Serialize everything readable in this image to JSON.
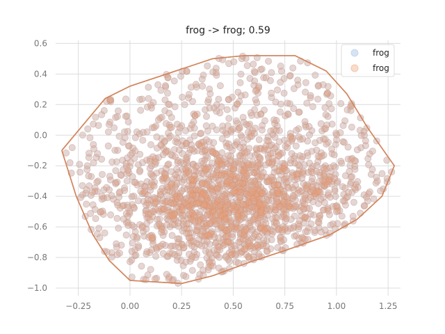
{
  "chart_data": {
    "type": "scatter",
    "title": "frog -> frog; 0.59",
    "xlabel": "",
    "ylabel": "",
    "xlim": [
      -0.36,
      1.31
    ],
    "ylim": [
      -1.05,
      0.62
    ],
    "xticks": [
      -0.25,
      0.0,
      0.25,
      0.5,
      0.75,
      1.0,
      1.25
    ],
    "xtick_labels": [
      "−0.25",
      "0.00",
      "0.25",
      "0.50",
      "0.75",
      "1.00",
      "1.25"
    ],
    "yticks": [
      0.6,
      0.4,
      0.2,
      0.0,
      -0.2,
      -0.4,
      -0.6,
      -0.8,
      -1.0
    ],
    "ytick_labels": [
      "0.6",
      "0.4",
      "0.2",
      "0.0",
      "−0.2",
      "−0.4",
      "−0.6",
      "−0.8",
      "−1.0"
    ],
    "grid": true,
    "legend_position": "top-right",
    "series": [
      {
        "name": "frog",
        "color": "#aec7e8",
        "point_count_estimate": 2000,
        "hull": [
          [
            -0.33,
            -0.1
          ],
          [
            -0.12,
            0.24
          ],
          [
            0.0,
            0.32
          ],
          [
            0.4,
            0.5
          ],
          [
            0.55,
            0.52
          ],
          [
            0.8,
            0.52
          ],
          [
            0.95,
            0.42
          ],
          [
            1.05,
            0.27
          ],
          [
            1.15,
            0.05
          ],
          [
            1.28,
            -0.2
          ],
          [
            1.22,
            -0.4
          ],
          [
            1.1,
            -0.55
          ],
          [
            0.97,
            -0.65
          ],
          [
            0.76,
            -0.75
          ],
          [
            0.58,
            -0.83
          ],
          [
            0.4,
            -0.92
          ],
          [
            0.25,
            -0.97
          ],
          [
            0.0,
            -0.95
          ],
          [
            -0.1,
            -0.82
          ],
          [
            -0.18,
            -0.65
          ],
          [
            -0.26,
            -0.4
          ],
          [
            -0.33,
            -0.1
          ]
        ]
      },
      {
        "name": "frog",
        "color": "#e0875a",
        "point_count_estimate": 2000,
        "hull": [
          [
            -0.33,
            -0.1
          ],
          [
            -0.12,
            0.24
          ],
          [
            0.0,
            0.32
          ],
          [
            0.4,
            0.5
          ],
          [
            0.55,
            0.52
          ],
          [
            0.8,
            0.52
          ],
          [
            0.95,
            0.42
          ],
          [
            1.05,
            0.27
          ],
          [
            1.15,
            0.05
          ],
          [
            1.28,
            -0.2
          ],
          [
            1.22,
            -0.4
          ],
          [
            1.1,
            -0.55
          ],
          [
            0.97,
            -0.65
          ],
          [
            0.76,
            -0.75
          ],
          [
            0.58,
            -0.83
          ],
          [
            0.4,
            -0.92
          ],
          [
            0.25,
            -0.97
          ],
          [
            0.0,
            -0.95
          ],
          [
            -0.1,
            -0.82
          ],
          [
            -0.18,
            -0.65
          ],
          [
            -0.26,
            -0.4
          ],
          [
            -0.33,
            -0.1
          ]
        ]
      }
    ]
  }
}
